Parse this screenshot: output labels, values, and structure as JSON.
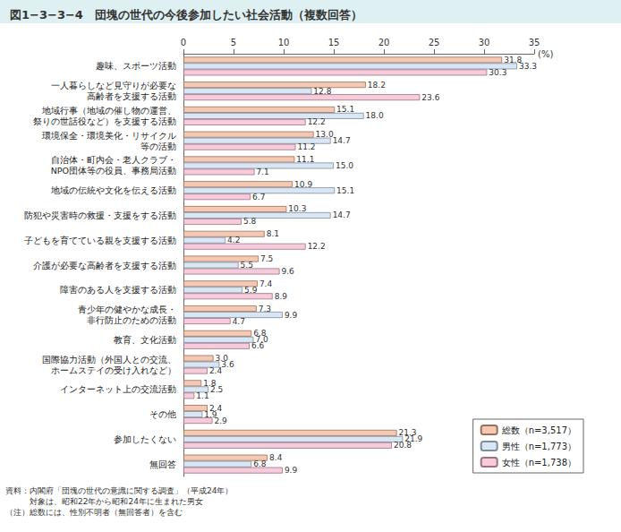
{
  "chart_data": {
    "type": "bar",
    "orientation": "horizontal",
    "title": "図1−3−3−4　団塊の世代の今後参加したい社会活動（複数回答）",
    "xlabel": "(%)",
    "categories": [
      "趣味、スポーツ活動",
      "一人暮らしなど見守りが必要な\n高齢者を支援する活動",
      "地域行事（地域の催し物の運営、\n祭りの世話役など）を支援する活動",
      "環境保全・環境美化・リサイクル\n等の活動",
      "自治体・町内会・老人クラブ・\nNPO団体等の役員、事務局活動",
      "地域の伝統や文化を伝える活動",
      "防犯や災害時の救援・支援をする活動",
      "子どもを育てている親を支援する活動",
      "介護が必要な高齢者を支援する活動",
      "障害のある人を支援する活動",
      "青少年の健やかな成長・\n非行防止のための活動",
      "教育、文化活動",
      "国際協力活動（外国人との交流、\nホームステイの受け入れなど）",
      "インターネット上の交流活動",
      "その他",
      "参加したくない",
      "無回答"
    ],
    "series": [
      {
        "name": "総数（n=3,517）",
        "color": "#f4c9b4",
        "values": [
          31.8,
          18.2,
          15.1,
          13.0,
          11.1,
          10.9,
          10.3,
          8.1,
          7.5,
          7.4,
          7.3,
          6.8,
          3.0,
          1.8,
          2.4,
          21.3,
          8.4
        ],
        "value_labels": [
          "31.8",
          "18.2",
          "15.1",
          "13.0",
          "11.1",
          "10.9",
          "10.3",
          "8.1",
          "7.5",
          "7.4",
          "7.3",
          "6.8",
          "3.0",
          "1.8",
          "2.4",
          "21.3",
          "8.4"
        ]
      },
      {
        "name": "男性（n=1,773）",
        "color": "#d9e6f4",
        "values": [
          33.3,
          12.8,
          18.0,
          14.7,
          15.0,
          15.1,
          14.7,
          4.2,
          5.5,
          5.9,
          9.9,
          7.0,
          3.6,
          2.5,
          1.9,
          21.9,
          6.8
        ],
        "value_labels": [
          "33.3",
          "12.8",
          "18.0",
          "14.7",
          "15.0",
          "15.1",
          "14.7",
          "4.2",
          "5.5",
          "5.9",
          "9.9",
          "7.0",
          "3.6",
          "2.5",
          "1.9",
          "21.9",
          "6.8"
        ]
      },
      {
        "name": "女性（n=1,738）",
        "color": "#f6cbdc",
        "values": [
          30.3,
          23.6,
          12.2,
          11.2,
          7.1,
          6.7,
          5.8,
          12.2,
          9.6,
          8.9,
          4.7,
          6.6,
          2.4,
          1.1,
          2.9,
          20.8,
          9.9
        ],
        "value_labels": [
          "30.3",
          "23.6",
          "12.2",
          "11.2",
          "7.1",
          "6.7",
          "5.8",
          "12.2",
          "9.6",
          "8.9",
          "4.7",
          "6.6",
          "2.4",
          "1.1",
          "2.9",
          "20.8",
          "9.9"
        ]
      }
    ],
    "xlim": [
      0,
      35
    ],
    "xticks": [
      0,
      5,
      10,
      15,
      20,
      25,
      30,
      35
    ],
    "grid": false,
    "legend": "bottom-right",
    "data_labels": true,
    "annotations": [
      "資料：内閣府「団塊の世代の意識に関する調査」（平成24年）",
      "　　　対象は、昭和22年から昭和24年に生まれた男女",
      "（注）総数には、性別不明者（無回答者）を含む"
    ]
  }
}
